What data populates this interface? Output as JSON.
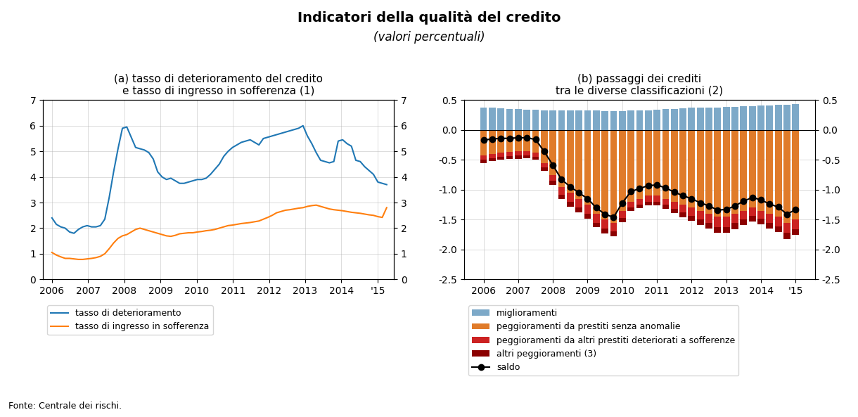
{
  "title": "Indicatori della qualità del credito",
  "subtitle": "(valori percentuali)",
  "annotations": [
    "Fonte: Centrale dei rischi."
  ],
  "chart_data": [
    {
      "type": "line",
      "title": "(a) tasso di deterioramento del credito\ne tasso di ingresso in sofferenza (1)",
      "x": [
        2006.0,
        2006.121711,
        2006.243421,
        2006.365132,
        2006.486842,
        2006.608553,
        2006.730263,
        2006.851974,
        2006.973684,
        2007.095395,
        2007.217105,
        2007.338816,
        2007.460526,
        2007.582237,
        2007.703947,
        2007.825658,
        2007.947368,
        2008.069079,
        2008.190789,
        2008.3125,
        2008.434211,
        2008.555921,
        2008.677632,
        2008.799342,
        2008.921053,
        2009.042763,
        2009.164474,
        2009.286184,
        2009.407895,
        2009.529605,
        2009.651316,
        2009.773026,
        2009.894737,
        2010.016447,
        2010.138158,
        2010.259868,
        2010.381579,
        2010.503289,
        2010.625,
        2010.746711,
        2010.868421,
        2010.990132,
        2011.111842,
        2011.233553,
        2011.355263,
        2011.476974,
        2011.598684,
        2011.720395,
        2011.842105,
        2011.963816,
        2012.085526,
        2012.207237,
        2012.328947,
        2012.450658,
        2012.572368,
        2012.694079,
        2012.815789,
        2012.9375,
        2013.059211,
        2013.180921,
        2013.302632,
        2013.424342,
        2013.546053,
        2013.667763,
        2013.789474,
        2013.911184,
        2014.032895,
        2014.154605,
        2014.276316,
        2014.398026,
        2014.519737,
        2014.641447,
        2014.763158,
        2014.884868,
        2015.006579,
        2015.128289,
        2015.25
      ],
      "xlim": [
        2005.75,
        2015.45
      ],
      "xticks": [
        2006,
        2007,
        2008,
        2009,
        2010,
        2011,
        2012,
        2013,
        2014,
        {
          "value": 2015,
          "label": "'15"
        }
      ],
      "ylim": [
        0,
        7
      ],
      "yticks": [
        0,
        1,
        2,
        3,
        4,
        5,
        6,
        7
      ],
      "y2lim": [
        0,
        7
      ],
      "y2ticks": [
        0,
        1,
        2,
        3,
        4,
        5,
        6,
        7
      ],
      "grid": true,
      "legend": "lower left",
      "series": [
        {
          "name": "tasso di deterioramento",
          "values": [
            2.4,
            2.15,
            2.05,
            2.0,
            1.85,
            1.8,
            1.95,
            2.05,
            2.1,
            2.05,
            2.05,
            2.1,
            2.35,
            3.2,
            4.2,
            5.1,
            5.9,
            5.95,
            5.55,
            5.15,
            5.1,
            5.05,
            4.95,
            4.7,
            4.2,
            4.0,
            3.9,
            3.95,
            3.85,
            3.75,
            3.75,
            3.8,
            3.85,
            3.9,
            3.9,
            3.95,
            4.1,
            4.3,
            4.5,
            4.8,
            5.0,
            5.15,
            5.25,
            5.35,
            5.4,
            5.45,
            5.35,
            5.25,
            5.5,
            5.55,
            5.6,
            5.65,
            5.7,
            5.75,
            5.8,
            5.85,
            5.9,
            6.0,
            5.6,
            5.3,
            4.95,
            4.65,
            4.6,
            4.55,
            4.6,
            5.4,
            5.45,
            5.3,
            5.2,
            4.65,
            4.6,
            4.4,
            4.25,
            4.1,
            3.8,
            3.75,
            3.7
          ]
        },
        {
          "name": "tasso di ingresso in sofferenza",
          "values": [
            1.05,
            0.95,
            0.88,
            0.82,
            0.82,
            0.8,
            0.78,
            0.78,
            0.8,
            0.82,
            0.85,
            0.9,
            1.0,
            1.2,
            1.42,
            1.6,
            1.7,
            1.75,
            1.85,
            1.95,
            2.0,
            1.95,
            1.9,
            1.85,
            1.8,
            1.75,
            1.7,
            1.68,
            1.72,
            1.78,
            1.8,
            1.82,
            1.82,
            1.85,
            1.87,
            1.9,
            1.92,
            1.95,
            2.0,
            2.05,
            2.1,
            2.12,
            2.15,
            2.18,
            2.2,
            2.22,
            2.25,
            2.28,
            2.35,
            2.42,
            2.5,
            2.6,
            2.65,
            2.7,
            2.72,
            2.75,
            2.78,
            2.8,
            2.85,
            2.88,
            2.9,
            2.85,
            2.8,
            2.75,
            2.72,
            2.7,
            2.68,
            2.65,
            2.62,
            2.6,
            2.58,
            2.55,
            2.52,
            2.5,
            2.45,
            2.42,
            2.8
          ]
        }
      ]
    },
    {
      "type": "bar",
      "title": "(b) passaggi dei crediti\ntra le diverse classificazioni (2)",
      "stacked": true,
      "categories": [
        "2006",
        null,
        null,
        null,
        "2007",
        null,
        null,
        null,
        "2008",
        null,
        null,
        null,
        "2009",
        null,
        null,
        null,
        "2010",
        null,
        null,
        null,
        "2011",
        null,
        null,
        null,
        "2012",
        null,
        null,
        null,
        "2013",
        null,
        null,
        null,
        "2014",
        null,
        null,
        null,
        "'15"
      ],
      "ylim": [
        -2.5,
        0.5
      ],
      "yticks": [
        -2.5,
        -2.0,
        -1.5,
        -1.0,
        -0.5,
        0.0,
        0.5
      ],
      "y2lim": [
        -2.5,
        0.5
      ],
      "y2ticks": [
        -2.5,
        -2.0,
        -1.5,
        -1.0,
        -0.5,
        0.0,
        0.5
      ],
      "grid": true,
      "legend": "lower left",
      "series": [
        {
          "name": "miglioramenti",
          "color": "#7da9c8",
          "values": [
            0.38,
            0.37,
            0.36,
            0.35,
            0.35,
            0.34,
            0.34,
            0.33,
            0.33,
            0.33,
            0.33,
            0.33,
            0.33,
            0.33,
            0.32,
            0.32,
            0.32,
            0.33,
            0.33,
            0.33,
            0.34,
            0.35,
            0.35,
            0.36,
            0.37,
            0.37,
            0.38,
            0.38,
            0.39,
            0.39,
            0.4,
            0.4,
            0.41,
            0.41,
            0.42,
            0.42,
            0.43
          ]
        },
        {
          "name": "peggioramenti da prestiti senza anomalie",
          "color": "#e07b2a",
          "values": [
            -0.42,
            -0.4,
            -0.38,
            -0.37,
            -0.36,
            -0.35,
            -0.38,
            -0.55,
            -0.75,
            -0.95,
            -1.05,
            -1.15,
            -1.25,
            -1.4,
            -1.5,
            -1.55,
            -1.35,
            -1.2,
            -1.15,
            -1.1,
            -1.1,
            -1.15,
            -1.2,
            -1.25,
            -1.3,
            -1.35,
            -1.4,
            -1.45,
            -1.45,
            -1.4,
            -1.35,
            -1.3,
            -1.35,
            -1.4,
            -1.45,
            -1.55,
            -1.5
          ]
        },
        {
          "name": "peggioramenti da altri prestiti deteriorati a sofferenze",
          "color": "#cc2222",
          "values": [
            -0.08,
            -0.07,
            -0.07,
            -0.07,
            -0.07,
            -0.07,
            -0.07,
            -0.08,
            -0.1,
            -0.13,
            -0.15,
            -0.15,
            -0.15,
            -0.15,
            -0.15,
            -0.15,
            -0.12,
            -0.1,
            -0.1,
            -0.1,
            -0.1,
            -0.1,
            -0.12,
            -0.13,
            -0.14,
            -0.15,
            -0.16,
            -0.17,
            -0.17,
            -0.16,
            -0.15,
            -0.14,
            -0.14,
            -0.15,
            -0.16,
            -0.17,
            -0.16
          ]
        },
        {
          "name": "altri peggioramenti (3)",
          "color": "#8b0000",
          "values": [
            -0.05,
            -0.05,
            -0.05,
            -0.05,
            -0.05,
            -0.05,
            -0.05,
            -0.06,
            -0.07,
            -0.08,
            -0.08,
            -0.08,
            -0.08,
            -0.08,
            -0.08,
            -0.08,
            -0.07,
            -0.06,
            -0.06,
            -0.06,
            -0.06,
            -0.07,
            -0.07,
            -0.08,
            -0.08,
            -0.09,
            -0.09,
            -0.1,
            -0.1,
            -0.1,
            -0.09,
            -0.09,
            -0.09,
            -0.1,
            -0.1,
            -0.11,
            -0.1
          ]
        },
        {
          "name": "saldo",
          "type": "line",
          "color": "black",
          "marker": "o",
          "values": [
            -0.17,
            -0.15,
            -0.14,
            -0.14,
            -0.13,
            -0.13,
            -0.16,
            -0.36,
            -0.59,
            -0.83,
            -0.95,
            -1.05,
            -1.15,
            -1.3,
            -1.41,
            -1.46,
            -1.22,
            -1.03,
            -0.98,
            -0.93,
            -0.92,
            -0.97,
            -1.04,
            -1.1,
            -1.15,
            -1.22,
            -1.27,
            -1.34,
            -1.33,
            -1.27,
            -1.19,
            -1.13,
            -1.17,
            -1.24,
            -1.29,
            -1.41,
            -1.33
          ]
        }
      ]
    }
  ]
}
